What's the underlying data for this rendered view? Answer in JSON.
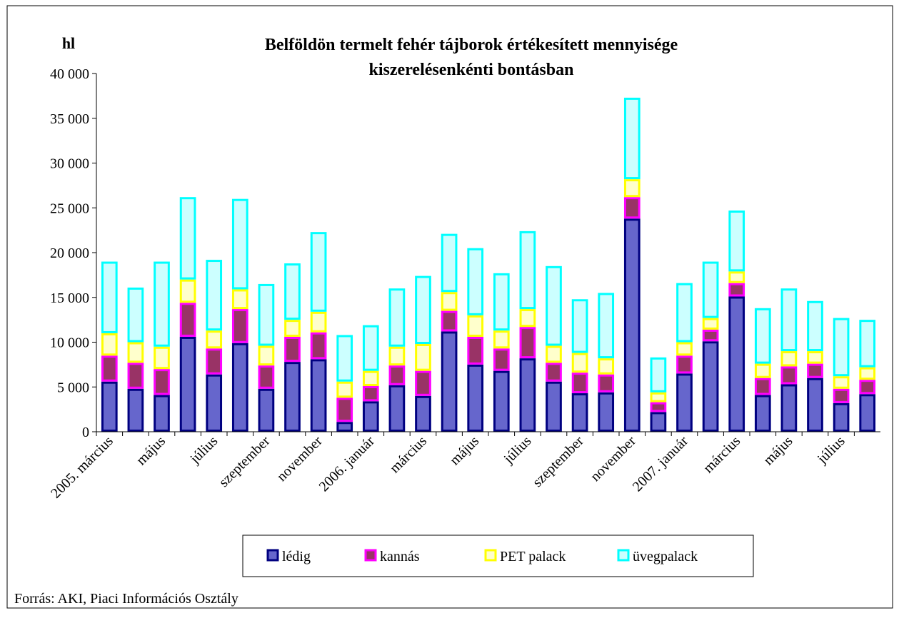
{
  "chart_data": {
    "type": "stacked_bar",
    "title": "Belföldön termelt fehér tájborok értékesített mennyisége",
    "subtitle": "kiszerelésenkénti bontásban",
    "ylabel": "hl",
    "source": "Forrás: AKI, Piaci Információs Osztály",
    "categories": [
      "2005. március",
      null,
      "május",
      null,
      "július",
      null,
      "szeptember",
      null,
      "november",
      null,
      "2006. január",
      null,
      "március",
      null,
      "május",
      null,
      "július",
      null,
      "szeptember",
      null,
      "november",
      null,
      "2007. január",
      null,
      "március",
      null,
      "május",
      null,
      "július",
      null
    ],
    "series": [
      {
        "name": "lédig",
        "color": "#6666cc",
        "edgecolor": "#000080",
        "values": [
          5600,
          4800,
          4100,
          10600,
          6400,
          9900,
          4800,
          7800,
          8100,
          1100,
          3400,
          5200,
          4000,
          11200,
          7500,
          6800,
          8200,
          5600,
          4300,
          4400,
          23800,
          2200,
          6500,
          10100,
          15100,
          4100,
          5300,
          6000,
          3200,
          4200
        ]
      },
      {
        "name": "kannás",
        "color": "#993366",
        "edgecolor": "#ff00ff",
        "values": [
          2900,
          2900,
          2900,
          3800,
          2900,
          3800,
          2600,
          2800,
          3000,
          2700,
          1700,
          2200,
          2800,
          2300,
          3100,
          2500,
          3500,
          2100,
          2300,
          2000,
          2400,
          1100,
          2000,
          1300,
          1500,
          1900,
          2000,
          1600,
          1600,
          1600
        ]
      },
      {
        "name": "PET palack",
        "color": "#ffffcc",
        "edgecolor": "#ffff00",
        "values": [
          2500,
          2300,
          2500,
          2600,
          2000,
          2200,
          2200,
          1900,
          2300,
          1800,
          1700,
          2100,
          3000,
          2100,
          2400,
          2000,
          2000,
          1900,
          2200,
          1800,
          2000,
          1100,
          1500,
          1300,
          1300,
          1600,
          1700,
          1400,
          1400,
          1400
        ]
      },
      {
        "name": "üvegpalack",
        "color": "#ccffff",
        "edgecolor": "#00ffff",
        "values": [
          8000,
          6100,
          9500,
          9200,
          7900,
          10100,
          6900,
          6300,
          8900,
          5200,
          5100,
          6500,
          7600,
          6500,
          7500,
          6400,
          8700,
          8900,
          6000,
          7300,
          9100,
          3900,
          6600,
          6300,
          6800,
          6200,
          7000,
          5600,
          6500,
          5300
        ]
      }
    ],
    "ylim": [
      0,
      40000
    ],
    "yticks": [
      0,
      {
        "value": 5000,
        "label": "5 000"
      },
      {
        "value": 10000,
        "label": "10 000"
      },
      {
        "value": 15000,
        "label": "15 000"
      },
      {
        "value": 20000,
        "label": "20 000"
      },
      {
        "value": 25000,
        "label": "25 000"
      },
      {
        "value": 30000,
        "label": "30 000"
      },
      {
        "value": 35000,
        "label": "35 000"
      },
      {
        "value": 40000,
        "label": "40 000"
      }
    ],
    "grid": false,
    "legend": "bottom"
  }
}
